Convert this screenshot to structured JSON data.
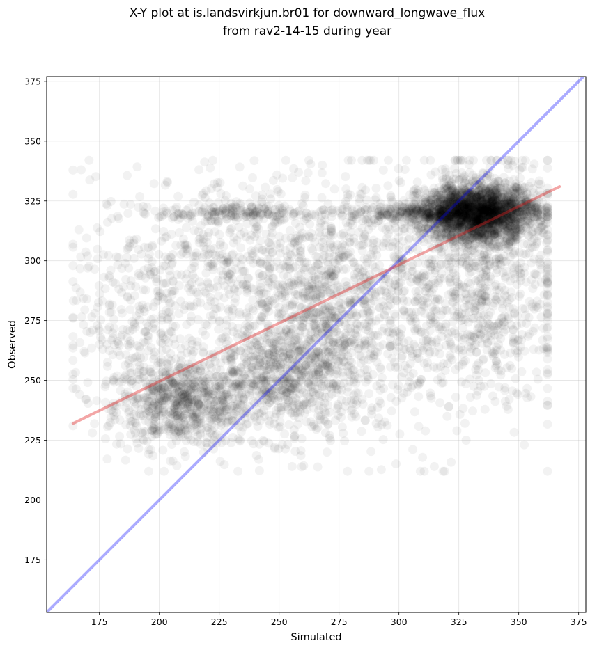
{
  "chart_data": {
    "type": "scatter",
    "title": "X-Y plot at is.landsvirkjun.br01 for downward_longwave_flux",
    "subtitle": "from rav2-14-15 during year",
    "xlabel": "Simulated",
    "ylabel": "Observed",
    "xlim": [
      153,
      378
    ],
    "ylim": [
      153,
      377
    ],
    "xticks": [
      175,
      200,
      225,
      250,
      275,
      300,
      325,
      350,
      375
    ],
    "yticks": [
      175,
      200,
      225,
      250,
      275,
      300,
      325,
      350,
      375
    ],
    "grid": true,
    "series": [
      {
        "name": "observations",
        "color": "#000000",
        "marker_opacity": 0.05,
        "density_clusters": [
          {
            "center": [
              210,
              240
            ],
            "spread": [
              14,
              9
            ],
            "count": 700
          },
          {
            "center": [
              250,
              250
            ],
            "spread": [
              18,
              12
            ],
            "count": 700
          },
          {
            "center": [
              265,
              270
            ],
            "spread": [
              12,
              14
            ],
            "count": 300
          },
          {
            "center": [
              240,
              300
            ],
            "spread": [
              35,
              18
            ],
            "count": 800
          },
          {
            "center": [
              300,
              280
            ],
            "spread": [
              30,
              28
            ],
            "count": 900
          },
          {
            "center": [
              333,
              320
            ],
            "spread": [
              12,
              6
            ],
            "count": 2200
          },
          {
            "center": [
              315,
              320
            ],
            "spread": [
              20,
              2
            ],
            "count": 400
          },
          {
            "center": [
              340,
              296
            ],
            "spread": [
              14,
              25
            ],
            "count": 500
          },
          {
            "center": [
              190,
              265
            ],
            "spread": [
              14,
              20
            ],
            "count": 250
          },
          {
            "center": [
              230,
              320
            ],
            "spread": [
              15,
              1.5
            ],
            "count": 150
          }
        ]
      },
      {
        "name": "one-to-one line",
        "color": "#0000ff",
        "opacity": 0.33,
        "x": [
          153,
          378
        ],
        "y": [
          153,
          378
        ]
      },
      {
        "name": "linear fit",
        "color": "#e02020",
        "opacity": 0.4,
        "x": [
          164,
          367
        ],
        "y": [
          232,
          331
        ]
      }
    ]
  }
}
